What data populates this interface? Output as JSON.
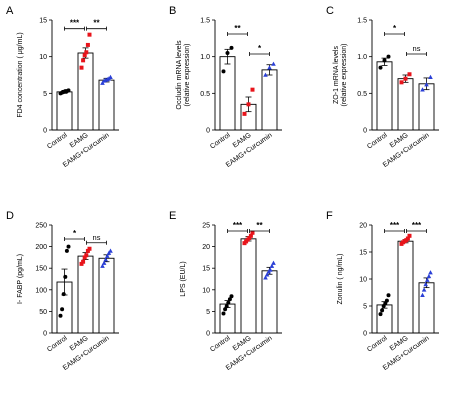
{
  "categories": [
    "Control",
    "EAMG",
    "EAMG+Curcumin"
  ],
  "colors": {
    "control": "#000000",
    "eamg": "#e8141b",
    "curcumin": "#2a3fd6"
  },
  "chart_data": [
    {
      "panel": "A",
      "type": "bar",
      "ylabel": "FD4 concentration ( μg/mL)",
      "ylim": [
        0,
        15
      ],
      "yticks": [
        0,
        5,
        10,
        15
      ],
      "means": [
        5.2,
        10.5,
        6.8
      ],
      "errors": [
        0.2,
        0.7,
        0.25
      ],
      "points": [
        [
          5.0,
          5.1,
          5.2,
          5.3,
          5.3,
          5.4
        ],
        [
          8.5,
          9.5,
          10.2,
          10.6,
          11.6,
          13.0
        ],
        [
          6.4,
          6.7,
          6.8,
          6.9,
          7.0,
          7.2
        ]
      ],
      "sig": [
        {
          "from": 0,
          "to": 1,
          "label": "***"
        },
        {
          "from": 1,
          "to": 2,
          "label": "**"
        }
      ]
    },
    {
      "panel": "B",
      "type": "bar",
      "ylabel": "Occludin mRNA levels\n(relative expression)",
      "ylim": [
        0,
        1.5
      ],
      "yticks": [
        0,
        0.5,
        1.0,
        1.5
      ],
      "means": [
        1.0,
        0.35,
        0.82
      ],
      "errors": [
        0.1,
        0.1,
        0.07
      ],
      "points": [
        [
          0.8,
          1.05,
          1.12
        ],
        [
          0.22,
          0.35,
          0.55
        ],
        [
          0.75,
          0.85,
          0.9
        ]
      ],
      "sig": [
        {
          "from": 0,
          "to": 1,
          "label": "**"
        },
        {
          "from": 1,
          "to": 2,
          "label": "*"
        }
      ]
    },
    {
      "panel": "C",
      "type": "bar",
      "ylabel": "ZO-1 mRNA levels\n(relative expression)",
      "ylim": [
        0,
        1.5
      ],
      "yticks": [
        0,
        0.5,
        1.0,
        1.5
      ],
      "means": [
        0.93,
        0.7,
        0.63
      ],
      "errors": [
        0.05,
        0.05,
        0.08
      ],
      "points": [
        [
          0.85,
          0.95,
          1.0
        ],
        [
          0.65,
          0.7,
          0.76
        ],
        [
          0.55,
          0.62,
          0.72
        ]
      ],
      "sig": [
        {
          "from": 0,
          "to": 1,
          "label": "*"
        },
        {
          "from": 1,
          "to": 2,
          "label": "ns"
        }
      ]
    },
    {
      "panel": "D",
      "type": "bar",
      "ylabel": "I- FABP (pg/mL)",
      "ylim": [
        0,
        250
      ],
      "yticks": [
        0,
        50,
        100,
        150,
        200,
        250
      ],
      "means": [
        118,
        178,
        173
      ],
      "errors": [
        30,
        8,
        8
      ],
      "points": [
        [
          40,
          55,
          90,
          130,
          190,
          200
        ],
        [
          160,
          165,
          175,
          180,
          190,
          195
        ],
        [
          155,
          162,
          170,
          178,
          185,
          190
        ]
      ],
      "sig": [
        {
          "from": 0,
          "to": 1,
          "label": "*"
        },
        {
          "from": 1,
          "to": 2,
          "label": "ns"
        }
      ]
    },
    {
      "panel": "E",
      "type": "bar",
      "ylabel": "LPS (EU/L)",
      "ylim": [
        0,
        25
      ],
      "yticks": [
        0,
        5,
        10,
        15,
        20,
        25
      ],
      "means": [
        6.7,
        21.8,
        14.4
      ],
      "errors": [
        0.8,
        0.5,
        0.8
      ],
      "points": [
        [
          4.5,
          5.5,
          6.2,
          7.0,
          7.8,
          8.5
        ],
        [
          20.8,
          21.2,
          21.6,
          22.0,
          22.5,
          23.2
        ],
        [
          12.8,
          13.5,
          14.2,
          14.6,
          15.5,
          16.2
        ]
      ],
      "sig": [
        {
          "from": 0,
          "to": 1,
          "label": "***"
        },
        {
          "from": 1,
          "to": 2,
          "label": "**"
        }
      ]
    },
    {
      "panel": "F",
      "type": "bar",
      "ylabel": "Zonulin ( ng/mL)",
      "ylim": [
        0,
        20
      ],
      "yticks": [
        0,
        5,
        10,
        15,
        20
      ],
      "means": [
        5.2,
        17.0,
        9.3
      ],
      "errors": [
        0.6,
        0.3,
        0.9
      ],
      "points": [
        [
          3.5,
          4.2,
          5.0,
          5.5,
          6.0,
          7.0
        ],
        [
          16.5,
          16.8,
          17.0,
          17.2,
          17.5,
          18.0
        ],
        [
          7.0,
          8.0,
          9.0,
          9.8,
          10.5,
          11.2
        ]
      ],
      "sig": [
        {
          "from": 0,
          "to": 1,
          "label": "***"
        },
        {
          "from": 1,
          "to": 2,
          "label": "***"
        }
      ]
    }
  ]
}
